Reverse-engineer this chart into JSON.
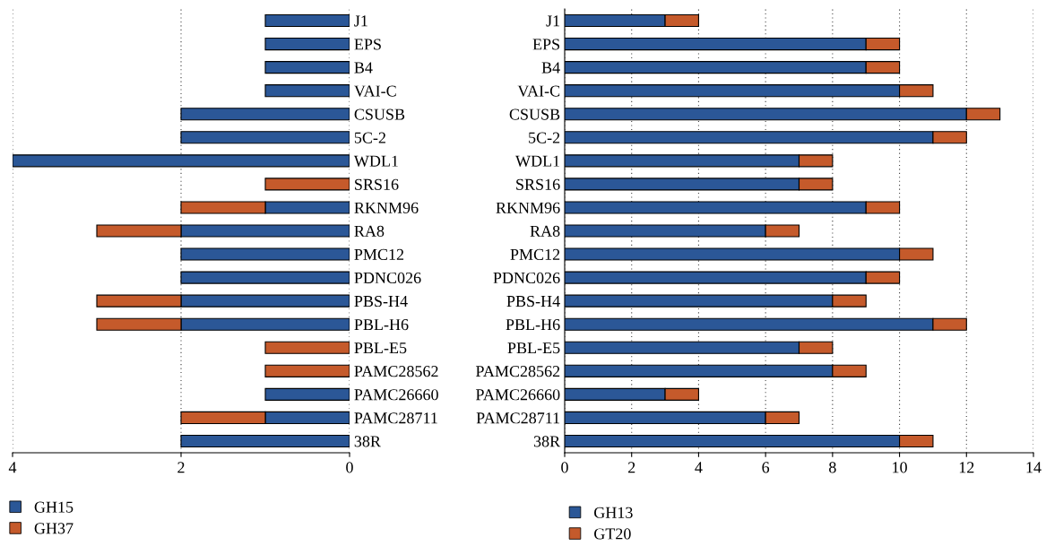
{
  "chart_data": [
    {
      "type": "bar",
      "orientation": "horizontal",
      "stacked": true,
      "categories": [
        "J1",
        "EPS",
        "B4",
        "VAI-C",
        "CSUSB",
        "5C-2",
        "WDL1",
        "SRS16",
        "RKNM96",
        "RA8",
        "PMC12",
        "PDNC026",
        "PBS-H4",
        "PBL-H6",
        "PBL-E5",
        "PAMC28562",
        "PAMC26660",
        "PAMC28711",
        "38R"
      ],
      "series": [
        {
          "name": "GH15",
          "color": "#2b5797",
          "values": [
            1,
            1,
            1,
            1,
            2,
            2,
            4,
            null,
            1,
            2,
            2,
            2,
            2,
            2,
            null,
            null,
            1,
            1,
            2
          ]
        },
        {
          "name": "GH37",
          "color": "#c55a2b",
          "values": [
            null,
            null,
            null,
            null,
            null,
            null,
            null,
            1,
            1,
            1,
            null,
            null,
            1,
            1,
            1,
            1,
            null,
            1,
            null
          ]
        }
      ],
      "xlim": [
        4,
        0
      ],
      "xticks": [
        4,
        2,
        0
      ],
      "grid": "x",
      "legend": "bottom left"
    },
    {
      "type": "bar",
      "orientation": "horizontal",
      "stacked": true,
      "categories": [
        "J1",
        "EPS",
        "B4",
        "VAI-C",
        "CSUSB",
        "5C-2",
        "WDL1",
        "SRS16",
        "RKNM96",
        "RA8",
        "PMC12",
        "PDNC026",
        "PBS-H4",
        "PBL-H6",
        "PBL-E5",
        "PAMC28562",
        "PAMC26660",
        "PAMC28711",
        "38R"
      ],
      "series": [
        {
          "name": "GH13",
          "color": "#2b5797",
          "values": [
            3,
            9,
            9,
            10,
            12,
            11,
            7,
            7,
            9,
            6,
            10,
            9,
            8,
            11,
            7,
            8,
            3,
            6,
            10
          ]
        },
        {
          "name": "GT20",
          "color": "#c55a2b",
          "values": [
            1,
            1,
            1,
            1,
            1,
            1,
            1,
            1,
            1,
            1,
            1,
            1,
            1,
            1,
            1,
            1,
            1,
            1,
            1
          ]
        }
      ],
      "xlim": [
        0,
        14
      ],
      "xticks": [
        0,
        2,
        4,
        6,
        8,
        10,
        12,
        14
      ],
      "grid": "x",
      "legend": "bottom left"
    }
  ]
}
